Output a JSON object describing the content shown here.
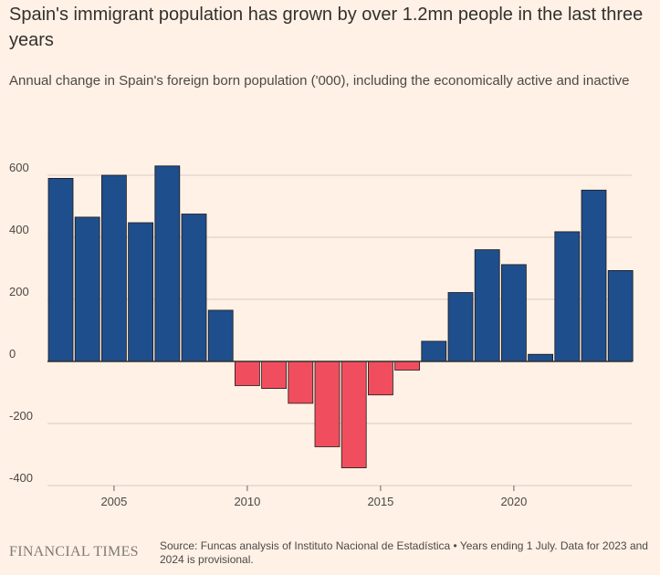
{
  "header": {
    "title": "Spain's immigrant population has grown by over 1.2mn people in the last three years",
    "subtitle": "Annual change in Spain's foreign born population ('000), including the economically active and inactive"
  },
  "footer": {
    "brand": "FINANCIAL TIMES",
    "source": "Source: Funcas analysis of Instituto Nacional de Estadística • Years ending 1 July. Data for 2023 and 2024 is provisional."
  },
  "colors": {
    "background": "#fff1e5",
    "positive": "#1f4e8c",
    "negative": "#f04e5e",
    "grid": "#d9ccc1",
    "baseline": "#33302e"
  },
  "chart_data": {
    "type": "bar",
    "title": "Spain's immigrant population has grown by over 1.2mn people in the last three years",
    "xlabel": "",
    "ylabel": "",
    "categories": [
      2003,
      2004,
      2005,
      2006,
      2007,
      2008,
      2009,
      2010,
      2011,
      2012,
      2013,
      2014,
      2015,
      2016,
      2017,
      2018,
      2019,
      2020,
      2021,
      2022,
      2023,
      2024
    ],
    "values": [
      590,
      465,
      600,
      447,
      630,
      475,
      165,
      -78,
      -87,
      -135,
      -275,
      -343,
      -108,
      -28,
      65,
      222,
      360,
      312,
      23,
      418,
      552,
      293
    ],
    "ylim": [
      -400,
      600
    ],
    "yticks": [
      -400,
      -200,
      0,
      200,
      400,
      600
    ],
    "xticks": [
      2005,
      2010,
      2015,
      2020
    ],
    "grid": true,
    "legend": "none"
  }
}
